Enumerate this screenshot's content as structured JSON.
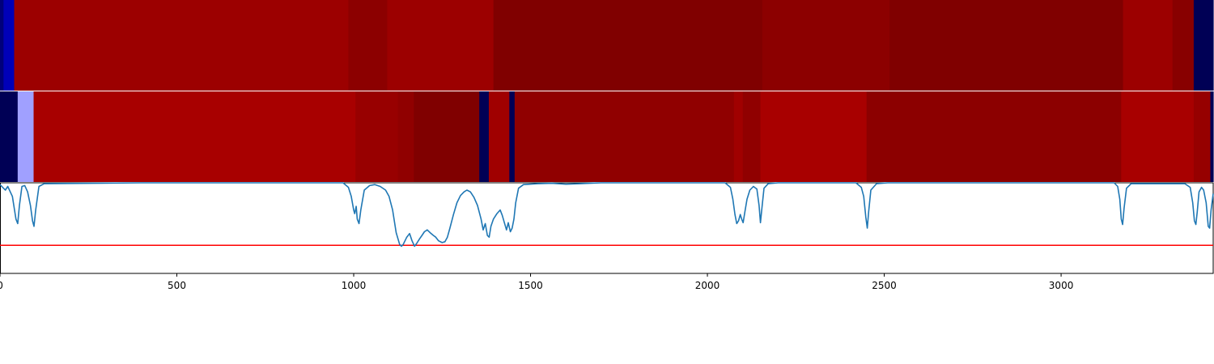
{
  "chart_data": {
    "type": "heatmap",
    "xlim": [
      0,
      3430
    ],
    "x_ticks": [
      0,
      500,
      1000,
      1500,
      2000,
      2500,
      3000
    ],
    "x_tick_labels": [
      "0",
      "500",
      "1000",
      "1500",
      "2000",
      "2500",
      "3000"
    ],
    "grid": false,
    "legend": "none",
    "heatmap_rows": [
      {
        "segments": [
          {
            "start": 0,
            "end": 10,
            "color": "#00007a"
          },
          {
            "start": 10,
            "end": 40,
            "color": "#0000b8"
          },
          {
            "start": 40,
            "end": 985,
            "color": "#9c0000"
          },
          {
            "start": 985,
            "end": 1095,
            "color": "#8c0000"
          },
          {
            "start": 1095,
            "end": 1395,
            "color": "#9c0000"
          },
          {
            "start": 1395,
            "end": 2155,
            "color": "#800000"
          },
          {
            "start": 2155,
            "end": 2515,
            "color": "#8c0000"
          },
          {
            "start": 2515,
            "end": 3175,
            "color": "#800000"
          },
          {
            "start": 3175,
            "end": 3315,
            "color": "#9c0000"
          },
          {
            "start": 3315,
            "end": 3375,
            "color": "#880000"
          },
          {
            "start": 3375,
            "end": 3430,
            "color": "#000055"
          }
        ]
      },
      {
        "segments": [
          {
            "start": 0,
            "end": 50,
            "color": "#000055"
          },
          {
            "start": 50,
            "end": 95,
            "color": "#a0a0ff"
          },
          {
            "start": 95,
            "end": 1005,
            "color": "#a80000"
          },
          {
            "start": 1005,
            "end": 1125,
            "color": "#980000"
          },
          {
            "start": 1125,
            "end": 1170,
            "color": "#900000"
          },
          {
            "start": 1170,
            "end": 1355,
            "color": "#800000"
          },
          {
            "start": 1355,
            "end": 1382,
            "color": "#000055"
          },
          {
            "start": 1382,
            "end": 1440,
            "color": "#a00000"
          },
          {
            "start": 1440,
            "end": 1455,
            "color": "#000055"
          },
          {
            "start": 1455,
            "end": 2075,
            "color": "#900000"
          },
          {
            "start": 2075,
            "end": 2100,
            "color": "#a00000"
          },
          {
            "start": 2100,
            "end": 2150,
            "color": "#900000"
          },
          {
            "start": 2150,
            "end": 2450,
            "color": "#a80000"
          },
          {
            "start": 2450,
            "end": 3170,
            "color": "#8c0000"
          },
          {
            "start": 3170,
            "end": 3375,
            "color": "#a80000"
          },
          {
            "start": 3375,
            "end": 3422,
            "color": "#960000"
          },
          {
            "start": 3422,
            "end": 3430,
            "color": "#000055"
          }
        ]
      }
    ],
    "line_series": {
      "color": "#1f77b4",
      "ylim": [
        -1,
        0
      ],
      "points": [
        [
          0,
          -0.02
        ],
        [
          15,
          -0.08
        ],
        [
          22,
          -0.04
        ],
        [
          35,
          -0.15
        ],
        [
          45,
          -0.4
        ],
        [
          50,
          -0.45
        ],
        [
          55,
          -0.25
        ],
        [
          62,
          -0.04
        ],
        [
          70,
          -0.03
        ],
        [
          78,
          -0.1
        ],
        [
          86,
          -0.25
        ],
        [
          92,
          -0.42
        ],
        [
          96,
          -0.48
        ],
        [
          101,
          -0.3
        ],
        [
          110,
          -0.04
        ],
        [
          125,
          -0.01
        ],
        [
          400,
          0
        ],
        [
          970,
          0
        ],
        [
          985,
          -0.05
        ],
        [
          993,
          -0.15
        ],
        [
          1000,
          -0.3
        ],
        [
          1003,
          -0.34
        ],
        [
          1007,
          -0.26
        ],
        [
          1010,
          -0.4
        ],
        [
          1015,
          -0.45
        ],
        [
          1020,
          -0.3
        ],
        [
          1030,
          -0.08
        ],
        [
          1045,
          -0.03
        ],
        [
          1060,
          -0.02
        ],
        [
          1075,
          -0.04
        ],
        [
          1090,
          -0.08
        ],
        [
          1100,
          -0.15
        ],
        [
          1110,
          -0.3
        ],
        [
          1120,
          -0.55
        ],
        [
          1130,
          -0.68
        ],
        [
          1135,
          -0.7
        ],
        [
          1140,
          -0.68
        ],
        [
          1150,
          -0.6
        ],
        [
          1158,
          -0.56
        ],
        [
          1165,
          -0.64
        ],
        [
          1172,
          -0.7
        ],
        [
          1178,
          -0.67
        ],
        [
          1186,
          -0.62
        ],
        [
          1193,
          -0.58
        ],
        [
          1200,
          -0.54
        ],
        [
          1208,
          -0.52
        ],
        [
          1216,
          -0.55
        ],
        [
          1225,
          -0.58
        ],
        [
          1232,
          -0.6
        ],
        [
          1240,
          -0.64
        ],
        [
          1250,
          -0.66
        ],
        [
          1258,
          -0.65
        ],
        [
          1265,
          -0.6
        ],
        [
          1272,
          -0.5
        ],
        [
          1282,
          -0.35
        ],
        [
          1292,
          -0.22
        ],
        [
          1302,
          -0.14
        ],
        [
          1312,
          -0.1
        ],
        [
          1320,
          -0.08
        ],
        [
          1330,
          -0.1
        ],
        [
          1340,
          -0.16
        ],
        [
          1350,
          -0.25
        ],
        [
          1360,
          -0.4
        ],
        [
          1366,
          -0.52
        ],
        [
          1372,
          -0.45
        ],
        [
          1378,
          -0.58
        ],
        [
          1383,
          -0.6
        ],
        [
          1388,
          -0.48
        ],
        [
          1395,
          -0.4
        ],
        [
          1405,
          -0.34
        ],
        [
          1414,
          -0.3
        ],
        [
          1420,
          -0.36
        ],
        [
          1426,
          -0.44
        ],
        [
          1432,
          -0.52
        ],
        [
          1437,
          -0.44
        ],
        [
          1443,
          -0.54
        ],
        [
          1448,
          -0.5
        ],
        [
          1453,
          -0.4
        ],
        [
          1458,
          -0.22
        ],
        [
          1466,
          -0.06
        ],
        [
          1480,
          -0.02
        ],
        [
          1520,
          -0.01
        ],
        [
          1560,
          -0.005
        ],
        [
          1600,
          -0.015
        ],
        [
          1640,
          -0.01
        ],
        [
          1680,
          -0.003
        ],
        [
          1700,
          0
        ],
        [
          2050,
          0
        ],
        [
          2065,
          -0.05
        ],
        [
          2072,
          -0.18
        ],
        [
          2078,
          -0.35
        ],
        [
          2083,
          -0.45
        ],
        [
          2088,
          -0.42
        ],
        [
          2093,
          -0.35
        ],
        [
          2097,
          -0.4
        ],
        [
          2101,
          -0.44
        ],
        [
          2106,
          -0.32
        ],
        [
          2112,
          -0.18
        ],
        [
          2120,
          -0.08
        ],
        [
          2130,
          -0.04
        ],
        [
          2140,
          -0.07
        ],
        [
          2146,
          -0.25
        ],
        [
          2150,
          -0.44
        ],
        [
          2154,
          -0.28
        ],
        [
          2160,
          -0.06
        ],
        [
          2172,
          -0.01
        ],
        [
          2200,
          0
        ],
        [
          2420,
          0
        ],
        [
          2435,
          -0.05
        ],
        [
          2442,
          -0.15
        ],
        [
          2448,
          -0.38
        ],
        [
          2452,
          -0.5
        ],
        [
          2456,
          -0.32
        ],
        [
          2462,
          -0.08
        ],
        [
          2478,
          -0.01
        ],
        [
          2510,
          0
        ],
        [
          3150,
          0
        ],
        [
          3160,
          -0.04
        ],
        [
          3166,
          -0.18
        ],
        [
          3170,
          -0.4
        ],
        [
          3174,
          -0.46
        ],
        [
          3178,
          -0.28
        ],
        [
          3185,
          -0.06
        ],
        [
          3198,
          -0.01
        ],
        [
          3350,
          -0.01
        ],
        [
          3365,
          -0.05
        ],
        [
          3372,
          -0.22
        ],
        [
          3377,
          -0.42
        ],
        [
          3381,
          -0.46
        ],
        [
          3385,
          -0.32
        ],
        [
          3390,
          -0.1
        ],
        [
          3397,
          -0.05
        ],
        [
          3403,
          -0.08
        ],
        [
          3410,
          -0.22
        ],
        [
          3416,
          -0.48
        ],
        [
          3420,
          -0.5
        ],
        [
          3424,
          -0.3
        ],
        [
          3430,
          -0.12
        ]
      ]
    },
    "threshold": {
      "y": -0.69,
      "color": "#ff0000"
    }
  }
}
